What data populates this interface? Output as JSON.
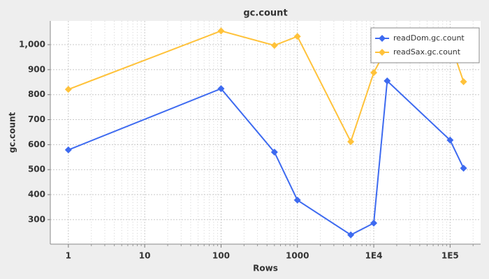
{
  "chart_data": {
    "type": "line",
    "title": "gc.count",
    "x_label": "Rows",
    "y_label": "gc.count",
    "x_log": true,
    "grid": true,
    "legend": "top-right",
    "x": [
      1,
      100,
      500,
      1000,
      5000,
      10000,
      15000,
      100000,
      150000
    ],
    "series": [
      {
        "name": "readDom.gc.count",
        "color": "#3d6af0",
        "values": [
          579,
          824,
          570,
          378,
          239,
          286,
          855,
          618,
          506
        ]
      },
      {
        "name": "readSax.gc.count",
        "color": "#ffc23a",
        "values": [
          821,
          1055,
          997,
          1033,
          612,
          888,
          990,
          1010,
          852
        ]
      }
    ],
    "xlim": [
      0.58,
      251000
    ],
    "xticks": [
      1,
      10,
      100,
      1000,
      {
        "value": 10000,
        "label": "1E4"
      },
      {
        "value": 100000,
        "label": "1E5"
      }
    ],
    "x_minor_ticks": [
      2,
      3,
      4,
      5,
      6,
      7,
      8,
      9,
      20,
      30,
      40,
      50,
      60,
      70,
      80,
      90,
      200,
      300,
      400,
      500,
      600,
      700,
      800,
      900,
      2000,
      3000,
      4000,
      5000,
      6000,
      7000,
      8000,
      9000,
      20000,
      30000,
      40000,
      50000,
      60000,
      70000,
      80000,
      90000,
      200000
    ],
    "ylim": [
      202,
      1095
    ],
    "yticks": [
      300,
      400,
      500,
      600,
      700,
      800,
      900,
      {
        "value": 1000,
        "label": "1,000"
      }
    ]
  }
}
